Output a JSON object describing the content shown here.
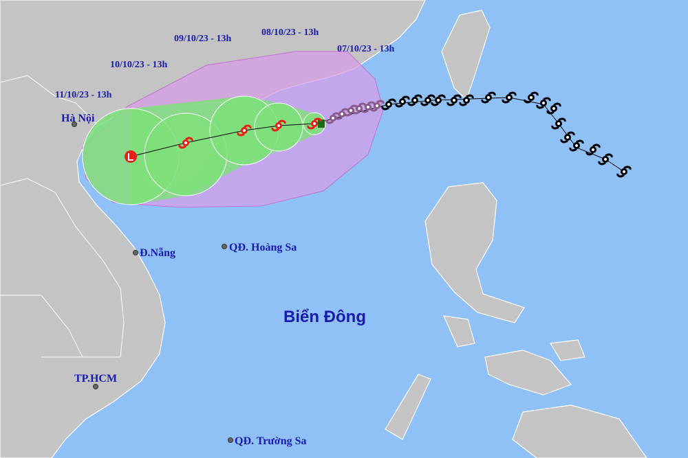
{
  "track_labels": [
    "07/10/23 - 13h",
    "08/10/23 - 13h",
    "09/10/23 - 13h",
    "10/10/23 - 13h",
    "11/10/23 - 13h"
  ],
  "places": [
    "Hà Nội",
    "Đ.Nẵng",
    "QĐ. Hoàng Sa",
    "TP.HCM",
    "QĐ. Trường Sa"
  ],
  "sea_label": "Biển Đông"
}
